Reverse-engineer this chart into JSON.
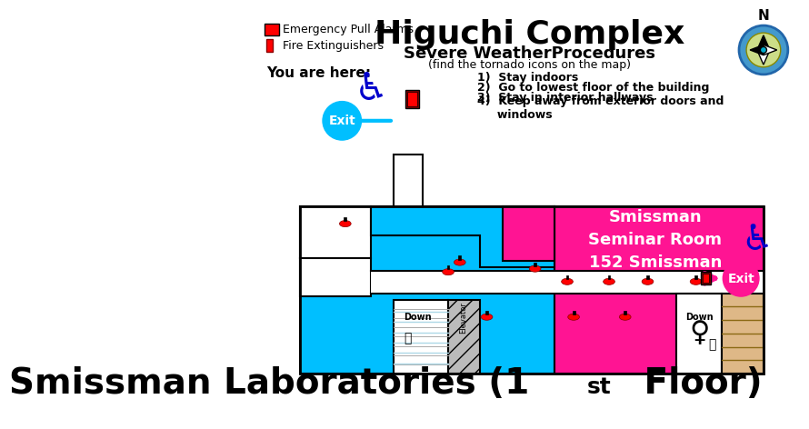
{
  "title": "Higuchi Complex",
  "subtitle": "Smissman Laboratories (1st Floor)",
  "cyan": "#00BFFF",
  "magenta": "#FF1493",
  "white": "#FFFFFF",
  "black": "#000000",
  "exit_cyan_color": "#00BFFF",
  "exit_magenta_color": "#FF1493",
  "seminar_room_label": "Smissman\nSeminar Room\n152 Smissman",
  "weather_title": "Severe WeatherProcedures",
  "weather_sub": "(find the tornado icons on the map)",
  "weather_items": [
    "Stay indoors",
    "Go to lowest floor of the building",
    "Stay in interior hallways",
    "Keep away from exterior doors and\n     windows"
  ],
  "legend_items": [
    "Emergency Pull Alarms",
    "Fire Extinguishers"
  ],
  "you_are_here": "You are here:"
}
